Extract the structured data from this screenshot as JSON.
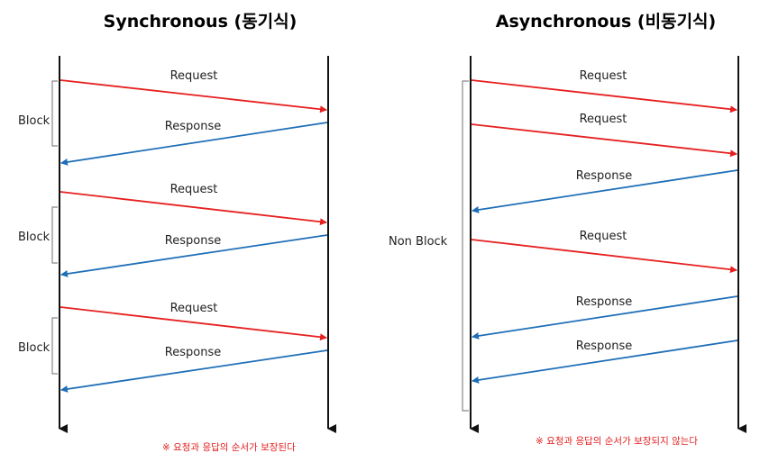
{
  "sync": {
    "title": "Synchronous (동기식)",
    "request_label": "Request",
    "response_label": "Response",
    "block_label": "Block",
    "note": "※ 요청과 응답의 순서가 보장된다"
  },
  "async": {
    "title": "Asynchronous (비동기식)",
    "request_label": "Request",
    "response_label": "Response",
    "block_label": "Non Block",
    "note": "※ 요청과 응답의 순서가 보장되지 않는다"
  },
  "colors": {
    "request": "#e62020",
    "response": "#1f6fb8",
    "lifeline": "#111111",
    "bracket": "#888888",
    "note": "#e02020"
  }
}
